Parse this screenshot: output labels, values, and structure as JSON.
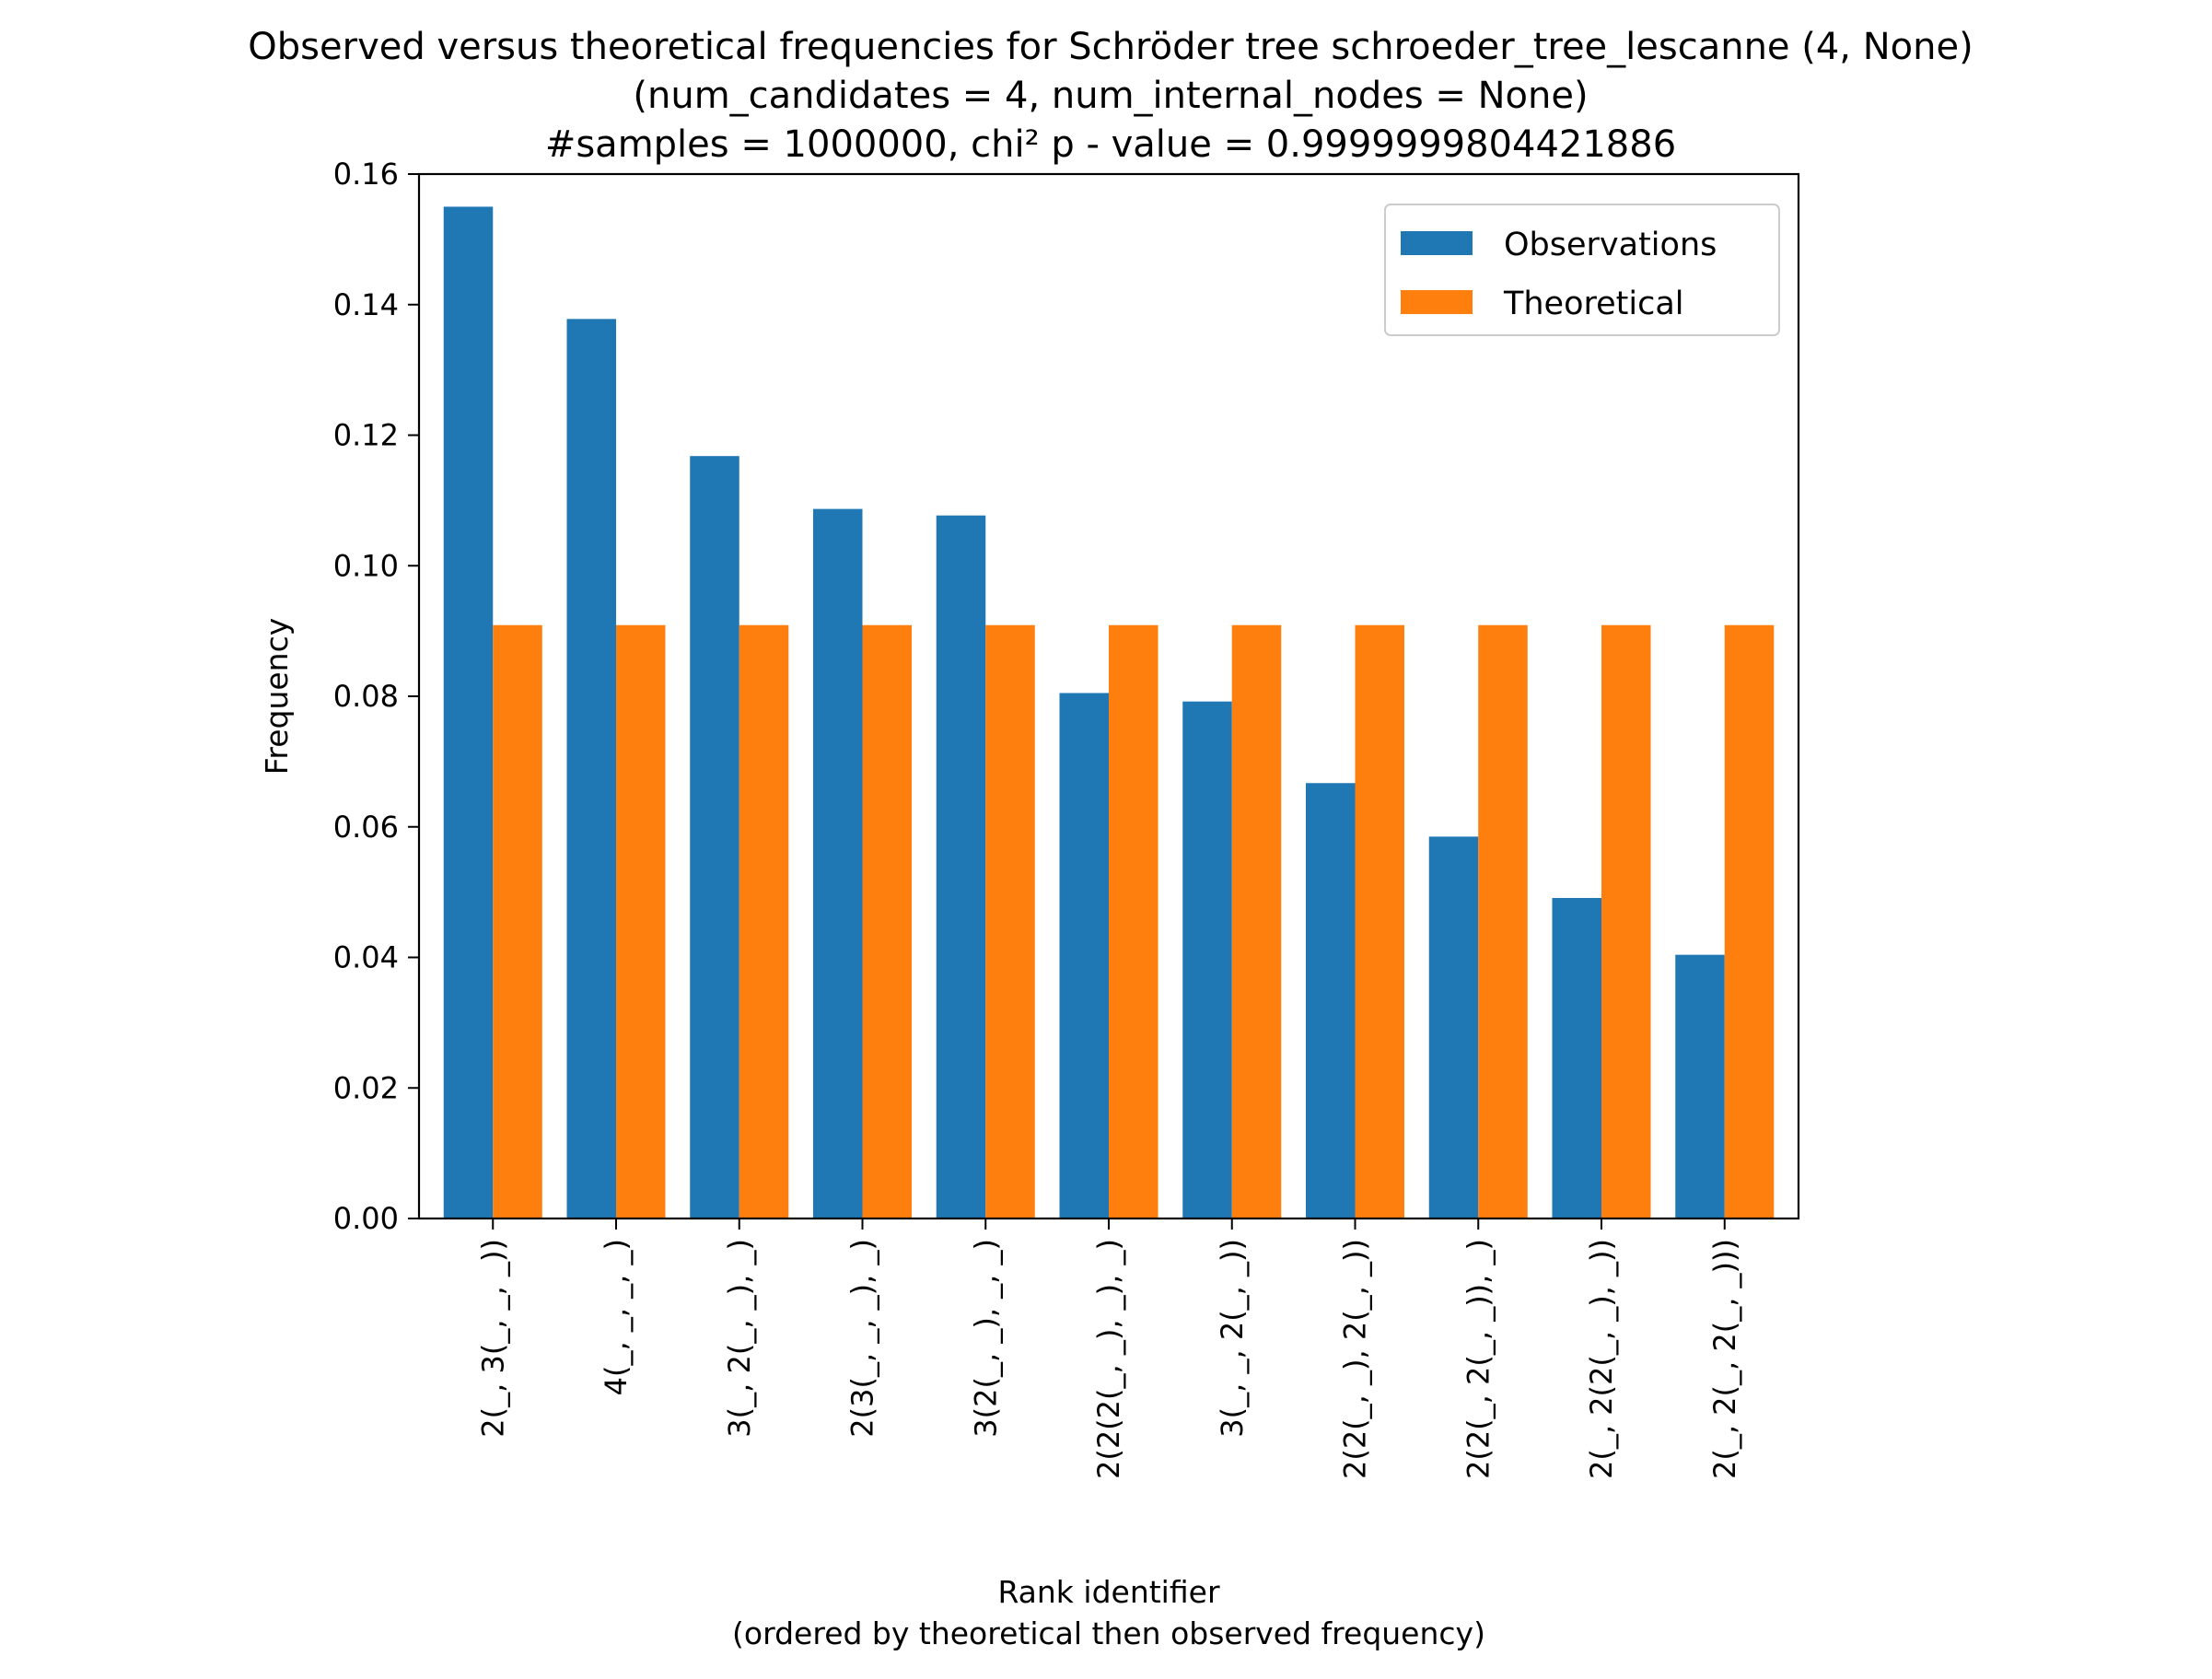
{
  "chart_data": {
    "type": "bar",
    "title_lines": [
      "Observed versus theoretical frequencies for Schröder tree schroeder_tree_lescanne (4, None)",
      "(num_candidates = 4, num_internal_nodes = None)",
      "#samples = 1000000, chi² p - value = 0.9999999804421886"
    ],
    "xlabel_lines": [
      "Rank identifier",
      "(ordered by theoretical then observed frequency)"
    ],
    "ylabel": "Frequency",
    "ylim": [
      0,
      0.16
    ],
    "yticks": [
      "0.00",
      "0.02",
      "0.04",
      "0.06",
      "0.08",
      "0.10",
      "0.12",
      "0.14",
      "0.16"
    ],
    "categories": [
      "2(_, 3(_, _, _))",
      "4(_, _, _, _)",
      "3(_, 2(_, _), _)",
      "2(3(_, _, _), _)",
      "3(2(_, _), _, _)",
      "2(2(2(_, _), _), _)",
      "3(_, _, 2(_, _))",
      "2(2(_, _), 2(_, _))",
      "2(2(_, 2(_, _)), _)",
      "2(_, 2(2(_, _), _))",
      "2(_, 2(_, 2(_, _)))"
    ],
    "series": [
      {
        "name": "Observations",
        "color": "#1f77b4",
        "values": [
          0.155,
          0.1378,
          0.1168,
          0.1087,
          0.1077,
          0.0805,
          0.0792,
          0.0667,
          0.0585,
          0.0491,
          0.0404
        ]
      },
      {
        "name": "Theoretical",
        "color": "#ff7f0e",
        "values": [
          0.0909,
          0.0909,
          0.0909,
          0.0909,
          0.0909,
          0.0909,
          0.0909,
          0.0909,
          0.0909,
          0.0909,
          0.0909
        ]
      }
    ],
    "legend_position": "upper right",
    "grid": false
  }
}
